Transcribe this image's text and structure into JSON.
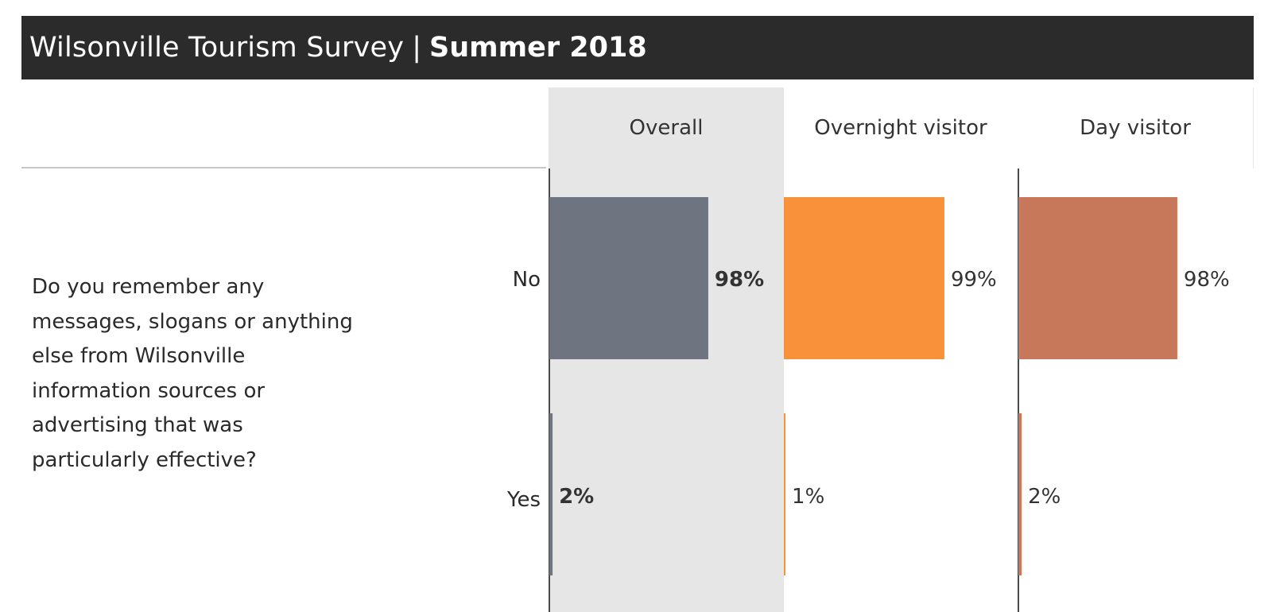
{
  "header": {
    "title": "Wilsonville Tourism Survey",
    "separator": "|",
    "subtitle": "Summer 2018"
  },
  "question": "Do you remember any messages, slogans or anything else from Wilsonville information sources or advertising that was particularly effective?",
  "chart_data": {
    "type": "bar",
    "categories": [
      "No",
      "Yes"
    ],
    "xlim": [
      0,
      100
    ],
    "series": [
      {
        "name": "Overall",
        "values": [
          98,
          2
        ],
        "labels": [
          "98%",
          "2%"
        ],
        "color": "#6f7580",
        "highlighted": true
      },
      {
        "name": "Overnight visitor",
        "values": [
          99,
          1
        ],
        "labels": [
          "99%",
          "1%"
        ],
        "color": "#f7923a",
        "highlighted": false
      },
      {
        "name": "Day visitor",
        "values": [
          98,
          2
        ],
        "labels": [
          "98%",
          "2%"
        ],
        "color": "#c7785a",
        "highlighted": false
      }
    ],
    "grid": false,
    "legend": "none"
  }
}
